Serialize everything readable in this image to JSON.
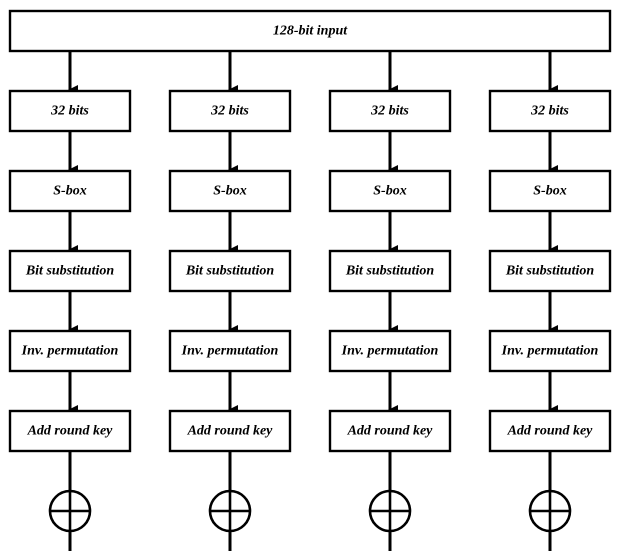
{
  "input": {
    "label": "128-bit input"
  },
  "stage_labels": [
    "32 bits",
    "S-box",
    "Bit substitution",
    "Inv. permutation",
    "Add round key"
  ],
  "columns": 4,
  "xor_operator": {
    "symbol": "XOR",
    "count": 4
  },
  "colors": {
    "stroke": "#000000",
    "fill": "#ffffff",
    "text": "#000000"
  }
}
